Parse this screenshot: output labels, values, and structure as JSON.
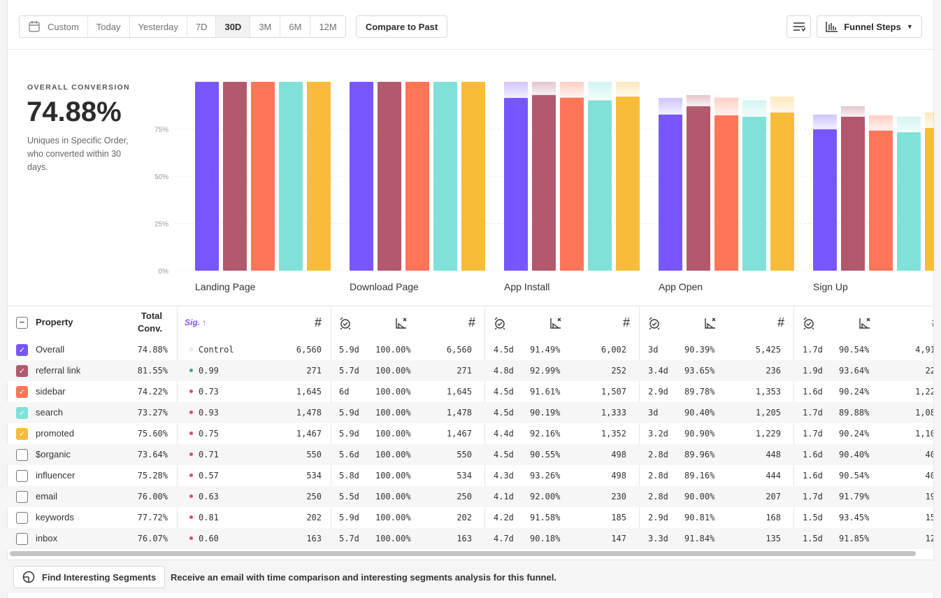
{
  "toolbar": {
    "date_range": [
      {
        "label": "Custom",
        "icon": "calendar-icon",
        "active": false
      },
      {
        "label": "Today",
        "active": false
      },
      {
        "label": "Yesterday",
        "active": false
      },
      {
        "label": "7D",
        "active": false
      },
      {
        "label": "30D",
        "active": true
      },
      {
        "label": "3M",
        "active": false
      },
      {
        "label": "6M",
        "active": false
      },
      {
        "label": "12M",
        "active": false
      }
    ],
    "compare_label": "Compare to Past",
    "settings_icon": "filter-lines-icon",
    "view_label": "Funnel Steps",
    "view_icon": "bar-chart-icon"
  },
  "summary": {
    "label": "OVERALL CONVERSION",
    "value": "74.88%",
    "description": "Uniques in Specific Order, who converted within 30 days."
  },
  "colors": {
    "Overall": "#7856FF",
    "referral link": "#B2596E",
    "sidebar": "#FF7557",
    "search": "#80E1D9",
    "promoted": "#F8BC3B"
  },
  "chart_data": {
    "type": "bar",
    "categories": [
      "Landing Page",
      "Download Page",
      "App Install",
      "App Open",
      "Sign Up"
    ],
    "yticks": [
      "0%",
      "25%",
      "50%",
      "75%"
    ],
    "ylim": [
      0,
      100
    ],
    "grid": true,
    "series": [
      {
        "name": "Overall",
        "values": [
          100,
          100,
          91.49,
          82.7,
          74.88
        ]
      },
      {
        "name": "referral link",
        "values": [
          100,
          100,
          92.99,
          87.08,
          81.55
        ]
      },
      {
        "name": "sidebar",
        "values": [
          100,
          100,
          91.61,
          82.25,
          74.22
        ]
      },
      {
        "name": "search",
        "values": [
          100,
          100,
          90.19,
          81.53,
          73.27
        ]
      },
      {
        "name": "promoted",
        "values": [
          100,
          100,
          92.16,
          83.78,
          75.6
        ]
      }
    ]
  },
  "table": {
    "headers": {
      "property": "Property",
      "total_conv": "Total Conv.",
      "sig": "Sig. ↑",
      "count_icon": "#",
      "time_icon": "alarm-check-icon",
      "rate_icon": "step-conversion-icon"
    },
    "rows": [
      {
        "name": "Overall",
        "checked": true,
        "total": "74.88%",
        "sig": "Control",
        "sig_color": "#dddddd",
        "cells": [
          "6,560",
          "5.9d",
          "100.00%",
          "6,560",
          "4.5d",
          "91.49%",
          "6,002",
          "3d",
          "90.39%",
          "5,425",
          "1.7d",
          "90.54%",
          "4,91"
        ]
      },
      {
        "name": "referral link",
        "checked": true,
        "total": "81.55%",
        "sig": "0.99",
        "sig_color": "#3fa59a",
        "cells": [
          "271",
          "5.7d",
          "100.00%",
          "271",
          "4.8d",
          "92.99%",
          "252",
          "3.4d",
          "93.65%",
          "236",
          "1.9d",
          "93.64%",
          "22"
        ]
      },
      {
        "name": "sidebar",
        "checked": true,
        "total": "74.22%",
        "sig": "0.73",
        "sig_color": "#e0456b",
        "cells": [
          "1,645",
          "6d",
          "100.00%",
          "1,645",
          "4.5d",
          "91.61%",
          "1,507",
          "2.9d",
          "89.78%",
          "1,353",
          "1.6d",
          "90.24%",
          "1,22"
        ]
      },
      {
        "name": "search",
        "checked": true,
        "total": "73.27%",
        "sig": "0.93",
        "sig_color": "#e0456b",
        "cells": [
          "1,478",
          "5.9d",
          "100.00%",
          "1,478",
          "4.5d",
          "90.19%",
          "1,333",
          "3d",
          "90.40%",
          "1,205",
          "1.7d",
          "89.88%",
          "1,08"
        ]
      },
      {
        "name": "promoted",
        "checked": true,
        "total": "75.60%",
        "sig": "0.75",
        "sig_color": "#e0456b",
        "cells": [
          "1,467",
          "5.9d",
          "100.00%",
          "1,467",
          "4.4d",
          "92.16%",
          "1,352",
          "3.2d",
          "90.90%",
          "1,229",
          "1.7d",
          "90.24%",
          "1,10"
        ]
      },
      {
        "name": "$organic",
        "checked": false,
        "total": "73.64%",
        "sig": "0.71",
        "sig_color": "#e0456b",
        "cells": [
          "550",
          "5.6d",
          "100.00%",
          "550",
          "4.5d",
          "90.55%",
          "498",
          "2.8d",
          "89.96%",
          "448",
          "1.6d",
          "90.40%",
          "40"
        ]
      },
      {
        "name": "influencer",
        "checked": false,
        "total": "75.28%",
        "sig": "0.57",
        "sig_color": "#e0456b",
        "cells": [
          "534",
          "5.8d",
          "100.00%",
          "534",
          "4.3d",
          "93.26%",
          "498",
          "2.8d",
          "89.16%",
          "444",
          "1.6d",
          "90.54%",
          "40"
        ]
      },
      {
        "name": "email",
        "checked": false,
        "total": "76.00%",
        "sig": "0.63",
        "sig_color": "#e0456b",
        "cells": [
          "250",
          "5.5d",
          "100.00%",
          "250",
          "4.1d",
          "92.00%",
          "230",
          "2.8d",
          "90.00%",
          "207",
          "1.7d",
          "91.79%",
          "19"
        ]
      },
      {
        "name": "keywords",
        "checked": false,
        "total": "77.72%",
        "sig": "0.81",
        "sig_color": "#e0456b",
        "cells": [
          "202",
          "5.9d",
          "100.00%",
          "202",
          "4.2d",
          "91.58%",
          "185",
          "2.9d",
          "90.81%",
          "168",
          "1.5d",
          "93.45%",
          "15"
        ]
      },
      {
        "name": "inbox",
        "checked": false,
        "total": "76.07%",
        "sig": "0.60",
        "sig_color": "#e0456b",
        "cells": [
          "163",
          "5.7d",
          "100.00%",
          "163",
          "4.7d",
          "90.18%",
          "147",
          "3.3d",
          "91.84%",
          "135",
          "1.5d",
          "91.85%",
          "12"
        ]
      }
    ]
  },
  "footer": {
    "button_label": "Find Interesting Segments",
    "button_icon": "segments-icon",
    "message": "Receive an email with time comparison and interesting segments analysis for this funnel."
  }
}
